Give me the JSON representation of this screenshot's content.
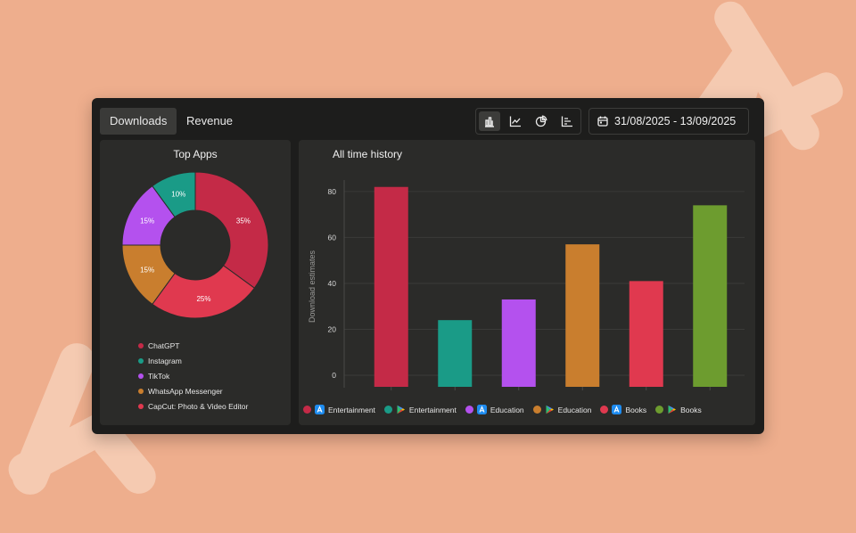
{
  "tabs": [
    {
      "label": "Downloads",
      "active": true
    },
    {
      "label": "Revenue",
      "active": false
    }
  ],
  "toolbar": {
    "icons": [
      "bar-chart-icon",
      "line-chart-icon",
      "pie-chart-icon",
      "horizontal-bar-icon"
    ],
    "active": "bar-chart-icon"
  },
  "date_range": "31/08/2025 - 13/09/2025",
  "top_apps": {
    "title": "Top Apps",
    "legend": [
      "ChatGPT",
      "Instagram",
      "TikTok",
      "WhatsApp Messenger",
      "CapCut: Photo & Video Editor"
    ]
  },
  "history": {
    "title": "All time history"
  },
  "colors": {
    "background": "#eeae8d",
    "window": "#1d1d1c",
    "panel": "#2b2b29",
    "red": "#c42a47",
    "teal": "#1a9b87",
    "purple": "#b451ee",
    "orange": "#c97e2e",
    "pink_red": "#e0394f",
    "green": "#6d9c2f"
  },
  "chart_data": [
    {
      "type": "pie",
      "title": "Top Apps",
      "donut": true,
      "slices": [
        {
          "label": "ChatGPT",
          "value": 35,
          "text": "35%",
          "color": "#c42a47"
        },
        {
          "label": "CapCut: Photo & Video Editor",
          "value": 25,
          "text": "25%",
          "color": "#e0394f"
        },
        {
          "label": "WhatsApp Messenger",
          "value": 15,
          "text": "15%",
          "color": "#c97e2e"
        },
        {
          "label": "TikTok",
          "value": 15,
          "text": "15%",
          "color": "#b451ee"
        },
        {
          "label": "Instagram",
          "value": 10,
          "text": "10%",
          "color": "#1a9b87"
        }
      ],
      "legend_placement": "bottom"
    },
    {
      "type": "bar",
      "title": "All time history",
      "ylabel": "Download estimates",
      "ylim": [
        0,
        85
      ],
      "yticks": [
        0,
        20,
        40,
        60,
        80
      ],
      "grid": true,
      "series": [
        {
          "name": "Entertainment",
          "store": "app-store",
          "value": 82,
          "color": "#c42a47"
        },
        {
          "name": "Entertainment",
          "store": "google-play",
          "value": 24,
          "color": "#1a9b87"
        },
        {
          "name": "Education",
          "store": "app-store",
          "value": 33,
          "color": "#b451ee"
        },
        {
          "name": "Education",
          "store": "google-play",
          "value": 57,
          "color": "#c97e2e"
        },
        {
          "name": "Books",
          "store": "app-store",
          "value": 41,
          "color": "#e0394f"
        },
        {
          "name": "Books",
          "store": "google-play",
          "value": 74,
          "color": "#6d9c2f"
        }
      ],
      "legend_placement": "bottom"
    }
  ]
}
